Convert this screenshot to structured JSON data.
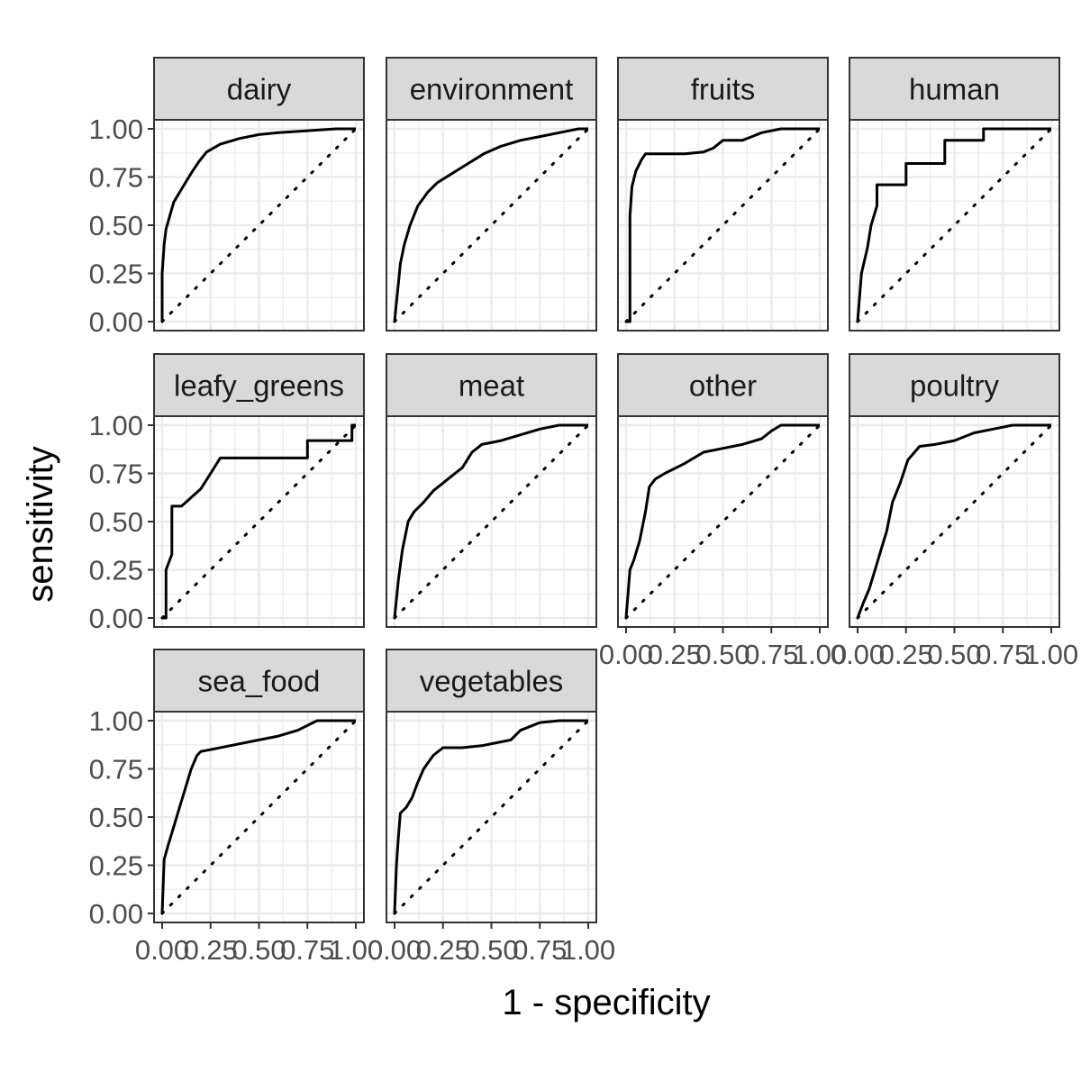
{
  "chart_data": {
    "type": "line",
    "title": "",
    "xlabel": "1 - specificity",
    "ylabel": "sensitivity",
    "xlim": [
      0,
      1
    ],
    "ylim": [
      0,
      1
    ],
    "x_ticks": [
      "0.00",
      "0.25",
      "0.50",
      "0.75",
      "1.00"
    ],
    "y_ticks": [
      "0.00",
      "0.25",
      "0.50",
      "0.75",
      "1.00"
    ],
    "grid": true,
    "reference_line": "diagonal, dotted",
    "facets": [
      {
        "name": "dairy",
        "x": [
          0,
          0,
          0.01,
          0.02,
          0.04,
          0.06,
          0.09,
          0.12,
          0.15,
          0.19,
          0.23,
          0.3,
          0.4,
          0.5,
          0.6,
          0.75,
          0.9,
          1.0
        ],
        "y": [
          0,
          0.25,
          0.4,
          0.48,
          0.55,
          0.62,
          0.67,
          0.72,
          0.77,
          0.83,
          0.88,
          0.92,
          0.95,
          0.97,
          0.98,
          0.99,
          1.0,
          1.0
        ]
      },
      {
        "name": "environment",
        "x": [
          0,
          0.01,
          0.02,
          0.03,
          0.05,
          0.08,
          0.12,
          0.17,
          0.22,
          0.3,
          0.38,
          0.46,
          0.55,
          0.65,
          0.75,
          0.85,
          0.95,
          1.0
        ],
        "y": [
          0,
          0.1,
          0.2,
          0.3,
          0.4,
          0.5,
          0.6,
          0.67,
          0.72,
          0.77,
          0.82,
          0.87,
          0.91,
          0.94,
          0.96,
          0.98,
          1.0,
          1.0
        ]
      },
      {
        "name": "fruits",
        "x": [
          0,
          0.02,
          0.02,
          0.03,
          0.05,
          0.08,
          0.1,
          0.2,
          0.3,
          0.4,
          0.45,
          0.5,
          0.6,
          0.65,
          0.7,
          0.8,
          1.0
        ],
        "y": [
          0,
          0,
          0.55,
          0.7,
          0.78,
          0.84,
          0.87,
          0.87,
          0.87,
          0.88,
          0.9,
          0.94,
          0.94,
          0.96,
          0.98,
          1.0,
          1.0
        ]
      },
      {
        "name": "human",
        "x": [
          0,
          0.02,
          0.05,
          0.07,
          0.1,
          0.1,
          0.25,
          0.25,
          0.45,
          0.45,
          0.65,
          0.65,
          1.0
        ],
        "y": [
          0,
          0.25,
          0.38,
          0.5,
          0.6,
          0.71,
          0.71,
          0.82,
          0.82,
          0.94,
          0.94,
          1.0,
          1.0
        ]
      },
      {
        "name": "leafy_greens",
        "x": [
          0,
          0.02,
          0.02,
          0.05,
          0.05,
          0.1,
          0.1,
          0.2,
          0.2,
          0.25,
          0.25,
          0.3,
          0.3,
          0.75,
          0.75,
          0.98,
          0.98,
          1.0
        ],
        "y": [
          0,
          0,
          0.25,
          0.33,
          0.58,
          0.58,
          0.58,
          0.67,
          0.67,
          0.75,
          0.75,
          0.83,
          0.83,
          0.83,
          0.92,
          0.92,
          1.0,
          1.0
        ]
      },
      {
        "name": "meat",
        "x": [
          0,
          0.02,
          0.04,
          0.07,
          0.1,
          0.15,
          0.2,
          0.25,
          0.3,
          0.35,
          0.4,
          0.45,
          0.55,
          0.65,
          0.75,
          0.85,
          1.0
        ],
        "y": [
          0,
          0.2,
          0.35,
          0.5,
          0.55,
          0.6,
          0.66,
          0.7,
          0.74,
          0.78,
          0.86,
          0.9,
          0.92,
          0.95,
          0.98,
          1.0,
          1.0
        ]
      },
      {
        "name": "other",
        "x": [
          0,
          0.02,
          0.04,
          0.07,
          0.1,
          0.12,
          0.15,
          0.2,
          0.3,
          0.4,
          0.5,
          0.6,
          0.7,
          0.75,
          0.8,
          1.0
        ],
        "y": [
          0,
          0.25,
          0.3,
          0.4,
          0.55,
          0.68,
          0.72,
          0.75,
          0.8,
          0.86,
          0.88,
          0.9,
          0.93,
          0.97,
          1.0,
          1.0
        ]
      },
      {
        "name": "poultry",
        "x": [
          0,
          0.03,
          0.06,
          0.09,
          0.12,
          0.15,
          0.18,
          0.22,
          0.26,
          0.32,
          0.4,
          0.5,
          0.6,
          0.7,
          0.8,
          0.9,
          1.0
        ],
        "y": [
          0,
          0.08,
          0.15,
          0.25,
          0.35,
          0.45,
          0.6,
          0.7,
          0.82,
          0.89,
          0.9,
          0.92,
          0.96,
          0.98,
          1.0,
          1.0,
          1.0
        ]
      },
      {
        "name": "sea_food",
        "x": [
          0,
          0.01,
          0.03,
          0.06,
          0.09,
          0.12,
          0.15,
          0.18,
          0.2,
          0.25,
          0.35,
          0.45,
          0.6,
          0.7,
          0.8,
          0.9,
          1.0
        ],
        "y": [
          0,
          0.28,
          0.35,
          0.45,
          0.55,
          0.65,
          0.75,
          0.82,
          0.84,
          0.85,
          0.87,
          0.89,
          0.92,
          0.95,
          1.0,
          1.0,
          1.0
        ]
      },
      {
        "name": "vegetables",
        "x": [
          0,
          0.01,
          0.02,
          0.03,
          0.06,
          0.09,
          0.12,
          0.15,
          0.2,
          0.25,
          0.35,
          0.45,
          0.55,
          0.6,
          0.65,
          0.75,
          0.85,
          1.0
        ],
        "y": [
          0,
          0.25,
          0.4,
          0.52,
          0.55,
          0.6,
          0.68,
          0.75,
          0.82,
          0.86,
          0.86,
          0.87,
          0.89,
          0.9,
          0.95,
          0.99,
          1.0,
          1.0
        ]
      }
    ]
  }
}
